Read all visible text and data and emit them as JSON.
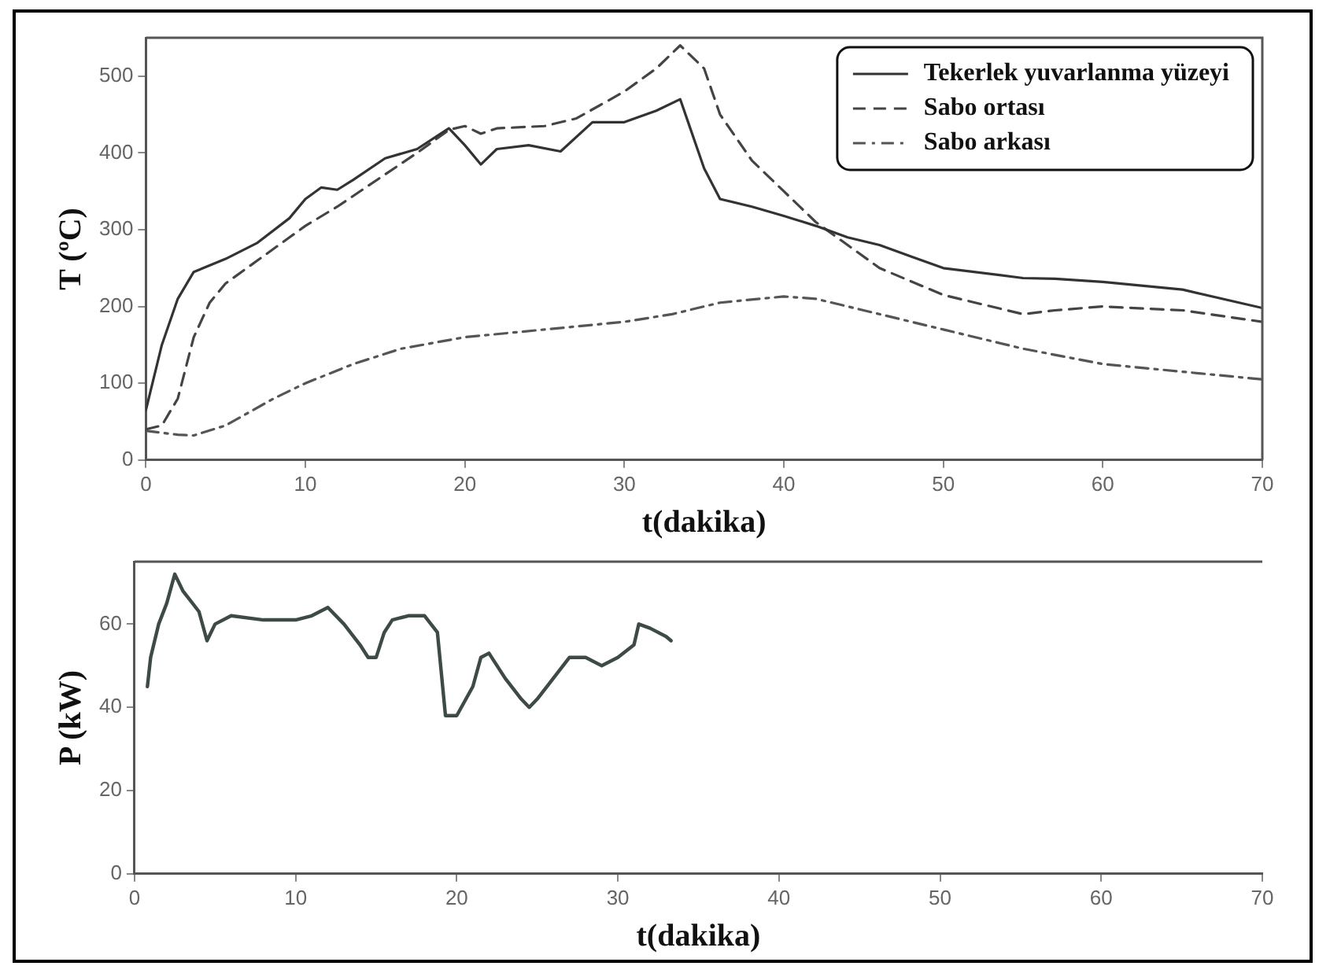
{
  "chart_data": [
    {
      "type": "line",
      "xlabel": "t(dakika)",
      "ylabel": "T (ºC)",
      "xlim": [
        0,
        70
      ],
      "xticks": [
        0,
        10,
        20,
        30,
        40,
        50,
        60,
        70
      ],
      "ylim": [
        0,
        550
      ],
      "yticks": [
        0,
        100,
        200,
        300,
        400,
        500
      ],
      "grid": false,
      "legend": "top right",
      "marker": "none",
      "series": [
        {
          "name": "Tekerlek yuvarlanma yüzeyi",
          "color": "#333333",
          "line_style": "solid",
          "x": [
            0,
            1,
            2,
            3,
            5,
            7,
            9,
            10,
            11,
            12,
            13,
            15,
            17,
            19,
            20,
            21,
            22,
            24,
            26,
            28,
            30,
            32,
            33.5,
            34,
            35,
            36,
            38,
            40,
            42,
            44,
            46,
            48,
            50,
            55,
            57,
            60,
            65,
            70
          ],
          "values": [
            65,
            150,
            210,
            245,
            262,
            283,
            315,
            340,
            355,
            352,
            365,
            393,
            405,
            432,
            410,
            385,
            405,
            410,
            402,
            440,
            440,
            455,
            470,
            440,
            380,
            340,
            330,
            318,
            305,
            290,
            280,
            265,
            250,
            237,
            236,
            232,
            222,
            198
          ]
        },
        {
          "name": "Sabo ortası",
          "color": "#444444",
          "line_style": "dashed",
          "x": [
            0,
            1,
            2,
            3,
            4,
            5,
            7,
            9,
            10,
            12,
            15,
            17,
            19,
            20,
            21,
            22,
            25,
            27,
            30,
            32,
            33.5,
            35,
            36,
            38,
            40,
            42,
            44,
            46,
            50,
            55,
            57,
            60,
            65,
            70
          ],
          "values": [
            40,
            45,
            80,
            160,
            205,
            230,
            260,
            290,
            305,
            330,
            372,
            400,
            430,
            435,
            425,
            432,
            435,
            445,
            480,
            510,
            540,
            510,
            450,
            390,
            350,
            310,
            280,
            250,
            215,
            190,
            195,
            200,
            195,
            180
          ]
        },
        {
          "name": "Sabo arkası",
          "color": "#555555",
          "line_style": "dashdot",
          "x": [
            0,
            2,
            3,
            5,
            8,
            10,
            13,
            16,
            20,
            25,
            30,
            33,
            36,
            40,
            42,
            45,
            50,
            55,
            60,
            65,
            70
          ],
          "values": [
            38,
            33,
            32,
            45,
            80,
            100,
            125,
            145,
            160,
            170,
            180,
            190,
            205,
            213,
            210,
            195,
            170,
            145,
            125,
            115,
            105
          ]
        }
      ]
    },
    {
      "type": "line",
      "xlabel": "t(dakika)",
      "ylabel": "P (kW)",
      "xlim": [
        0,
        70
      ],
      "xticks": [
        0,
        10,
        20,
        30,
        40,
        50,
        60,
        70
      ],
      "ylim": [
        0,
        75
      ],
      "yticks": [
        0,
        20,
        40,
        60
      ],
      "grid": false,
      "legend": false,
      "marker": "none",
      "series": [
        {
          "color": "#3d4a46",
          "line_style": "solid",
          "x": [
            0.8,
            1,
            1.5,
            2,
            2.5,
            3,
            4,
            4.5,
            5,
            6,
            8,
            10,
            11,
            12,
            13,
            14,
            14.5,
            15,
            15.5,
            16,
            17,
            18,
            18.8,
            19,
            19.3,
            20,
            21,
            21.5,
            22,
            23,
            24,
            24.5,
            25,
            26,
            27,
            28,
            29,
            30,
            31,
            31.3,
            32,
            33,
            33.3
          ],
          "values": [
            45,
            52,
            60,
            65,
            72,
            68,
            63,
            56,
            60,
            62,
            61,
            61,
            62,
            64,
            60,
            55,
            52,
            52,
            58,
            61,
            62,
            62,
            58,
            50,
            38,
            38,
            45,
            52,
            53,
            47,
            42,
            40,
            42,
            47,
            52,
            52,
            50,
            52,
            55,
            60,
            59,
            57,
            56
          ]
        }
      ]
    }
  ]
}
